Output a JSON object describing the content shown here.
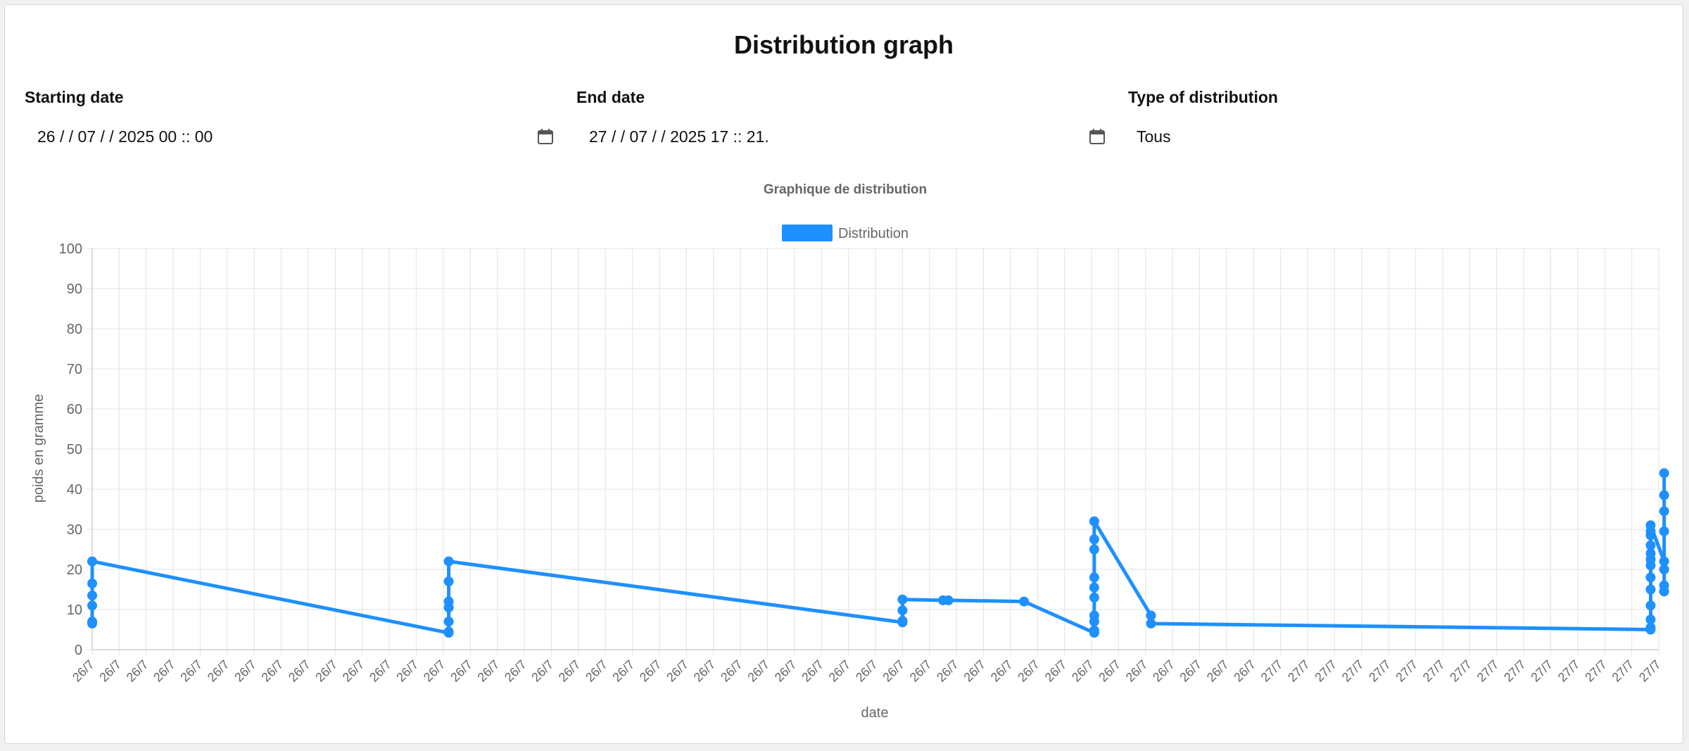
{
  "page": {
    "title": "Distribution graph"
  },
  "filters": {
    "start": {
      "label": "Starting date",
      "value": "26 / / 07 / / 2025   00 :: 00"
    },
    "end": {
      "label": "End date",
      "value": "27 / / 07 / / 2025   17 :: 21."
    },
    "type": {
      "label": "Type of distribution",
      "value": "Tous"
    }
  },
  "icons": {
    "calendar": "calendar-icon"
  },
  "chart_data": {
    "type": "line",
    "title": "Graphique de distribution",
    "xlabel": "date",
    "ylabel": "poids en gramme",
    "ylim": [
      0,
      100
    ],
    "yticks": [
      0,
      10,
      20,
      30,
      40,
      50,
      60,
      70,
      80,
      90,
      100
    ],
    "grid": true,
    "legend_position": "top",
    "colors": {
      "series": "#1e90ff",
      "grid": "#e3e3e3",
      "axis_text": "#666666"
    },
    "x": [
      "26/7",
      "26/7",
      "26/7",
      "26/7",
      "26/7",
      "26/7",
      "26/7",
      "26/7",
      "26/7",
      "26/7",
      "26/7",
      "26/7",
      "26/7",
      "26/7",
      "26/7",
      "26/7",
      "26/7",
      "26/7",
      "26/7",
      "26/7",
      "26/7",
      "26/7",
      "26/7",
      "26/7",
      "26/7",
      "26/7",
      "26/7",
      "26/7",
      "26/7",
      "26/7",
      "26/7",
      "26/7",
      "26/7",
      "26/7",
      "26/7",
      "26/7",
      "26/7",
      "26/7",
      "26/7",
      "26/7",
      "26/7",
      "26/7",
      "26/7",
      "26/7",
      "27/7",
      "27/7",
      "27/7",
      "27/7",
      "27/7",
      "27/7",
      "27/7",
      "27/7",
      "27/7",
      "27/7",
      "27/7",
      "27/7",
      "27/7",
      "27/7",
      "27/7"
    ],
    "series": [
      {
        "name": "Distribution",
        "points": [
          {
            "x": 0,
            "y": 6.5
          },
          {
            "x": 0,
            "y": 7
          },
          {
            "x": 0,
            "y": 11
          },
          {
            "x": 0,
            "y": 13.5
          },
          {
            "x": 0,
            "y": 16.5
          },
          {
            "x": 0,
            "y": 22
          },
          {
            "x": 13.2,
            "y": 4.2
          },
          {
            "x": 13.2,
            "y": 4.5
          },
          {
            "x": 13.2,
            "y": 7
          },
          {
            "x": 13.2,
            "y": 10.5
          },
          {
            "x": 13.2,
            "y": 12
          },
          {
            "x": 13.2,
            "y": 17
          },
          {
            "x": 13.2,
            "y": 22
          },
          {
            "x": 30.0,
            "y": 6.8
          },
          {
            "x": 30.0,
            "y": 7.2
          },
          {
            "x": 30.0,
            "y": 9.8
          },
          {
            "x": 30.0,
            "y": 12.5
          },
          {
            "x": 31.5,
            "y": 12.3
          },
          {
            "x": 31.7,
            "y": 12.3
          },
          {
            "x": 34.5,
            "y": 12
          },
          {
            "x": 37.1,
            "y": 4.2
          },
          {
            "x": 37.1,
            "y": 4.8
          },
          {
            "x": 37.1,
            "y": 7
          },
          {
            "x": 37.1,
            "y": 8.5
          },
          {
            "x": 37.1,
            "y": 13
          },
          {
            "x": 37.1,
            "y": 15.5
          },
          {
            "x": 37.1,
            "y": 18
          },
          {
            "x": 37.1,
            "y": 25
          },
          {
            "x": 37.1,
            "y": 27.5
          },
          {
            "x": 37.1,
            "y": 32
          },
          {
            "x": 39.2,
            "y": 8.5
          },
          {
            "x": 39.2,
            "y": 6.5
          },
          {
            "x": 57.7,
            "y": 5
          },
          {
            "x": 57.7,
            "y": 5.5
          },
          {
            "x": 57.7,
            "y": 7.5
          },
          {
            "x": 57.7,
            "y": 11
          },
          {
            "x": 57.7,
            "y": 15
          },
          {
            "x": 57.7,
            "y": 18
          },
          {
            "x": 57.7,
            "y": 21
          },
          {
            "x": 57.7,
            "y": 22.5
          },
          {
            "x": 57.7,
            "y": 24
          },
          {
            "x": 57.7,
            "y": 26
          },
          {
            "x": 57.7,
            "y": 28.5
          },
          {
            "x": 57.7,
            "y": 29.5
          },
          {
            "x": 57.7,
            "y": 31
          },
          {
            "x": 58.2,
            "y": 22
          },
          {
            "x": 58.2,
            "y": 20
          },
          {
            "x": 58.2,
            "y": 16
          },
          {
            "x": 58.2,
            "y": 14.5
          },
          {
            "x": 58.2,
            "y": 29.5
          },
          {
            "x": 58.2,
            "y": 34.5
          },
          {
            "x": 58.2,
            "y": 38.5
          },
          {
            "x": 58.2,
            "y": 44
          }
        ]
      }
    ]
  }
}
